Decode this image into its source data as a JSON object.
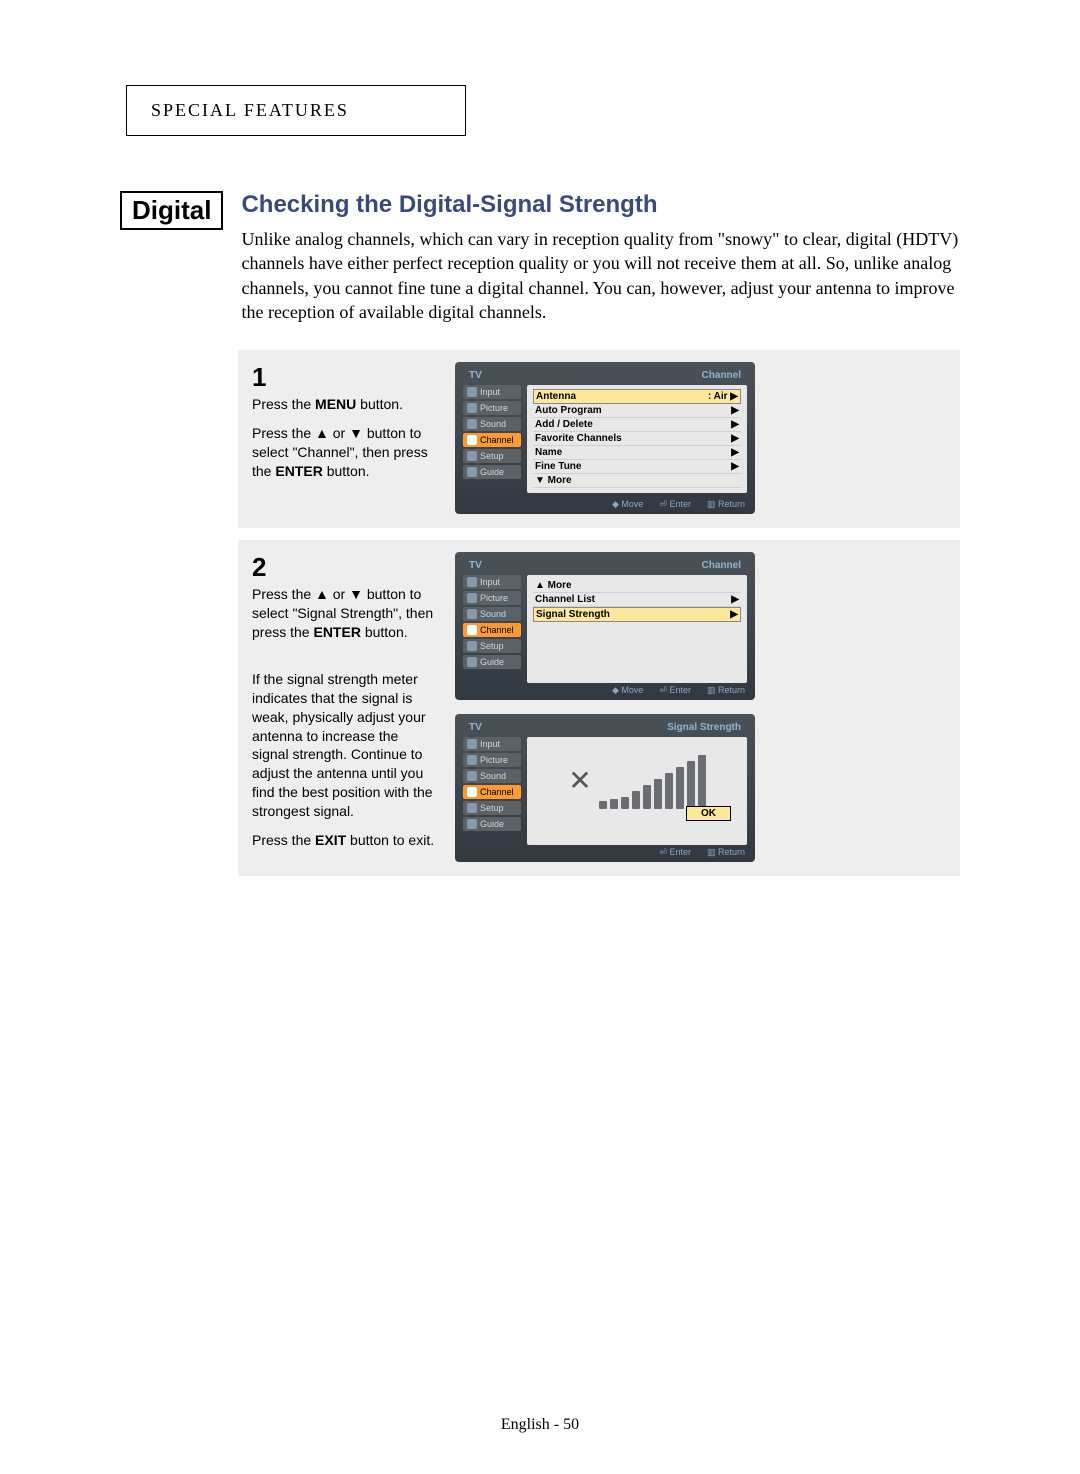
{
  "header": {
    "section_label": "SPECIAL FEATURES"
  },
  "tag": {
    "label": "Digital"
  },
  "title": "Checking the Digital-Signal Strength",
  "intro": "Unlike analog channels, which can vary in reception quality from \"snowy\" to clear, digital (HDTV) channels have either perfect reception quality or you will not receive them at all. So, unlike analog channels, you cannot fine tune a digital channel. You can, however, adjust your antenna to improve the reception of available digital channels.",
  "steps": {
    "step1": {
      "number": "1",
      "line1_pre": "Press the ",
      "line1_bold": "MENU",
      "line1_post": " button.",
      "line2_pre": "Press the ▲ or ▼ button to select \"Channel\", then press the ",
      "line2_bold": "ENTER",
      "line2_post": " button."
    },
    "step2": {
      "number": "2",
      "line1_pre": "Press the ▲ or ▼ button to select \"Signal Strength\", then press the ",
      "line1_bold": "ENTER",
      "line1_post": " button.",
      "note": "If the signal strength meter indicates that the signal is weak, physically adjust your antenna to increase the signal strength. Continue to adjust the antenna until you find the best position with the strongest signal.",
      "exit_pre": "Press the ",
      "exit_bold": "EXIT",
      "exit_post": " button to exit."
    }
  },
  "tv_common": {
    "tv_label": "TV",
    "sidebar": [
      "Input",
      "Picture",
      "Sound",
      "Channel",
      "Setup",
      "Guide"
    ],
    "footer": {
      "move": "Move",
      "enter": "Enter",
      "return": "Return"
    }
  },
  "screen1": {
    "header_right": "Channel",
    "rows": [
      {
        "label": "Antenna",
        "value": ":   Air",
        "highlight": true
      },
      {
        "label": "Auto Program",
        "value": ""
      },
      {
        "label": "Add / Delete",
        "value": ""
      },
      {
        "label": "Favorite Channels",
        "value": ""
      },
      {
        "label": "Name",
        "value": ""
      },
      {
        "label": "Fine Tune",
        "value": ""
      },
      {
        "label": "▼ More",
        "value": "",
        "noarrow": true
      }
    ]
  },
  "screen2": {
    "header_right": "Channel",
    "rows": [
      {
        "label": "▲ More",
        "value": "",
        "noarrow": true
      },
      {
        "label": "Channel List",
        "value": ""
      },
      {
        "label": "Signal Strength",
        "value": "",
        "highlight": true
      }
    ]
  },
  "screen3": {
    "header_right": "Signal Strength",
    "ok_label": "OK",
    "bars": [
      8,
      10,
      12,
      18,
      24,
      30,
      36,
      42,
      48,
      54
    ]
  },
  "footer": "English - 50"
}
